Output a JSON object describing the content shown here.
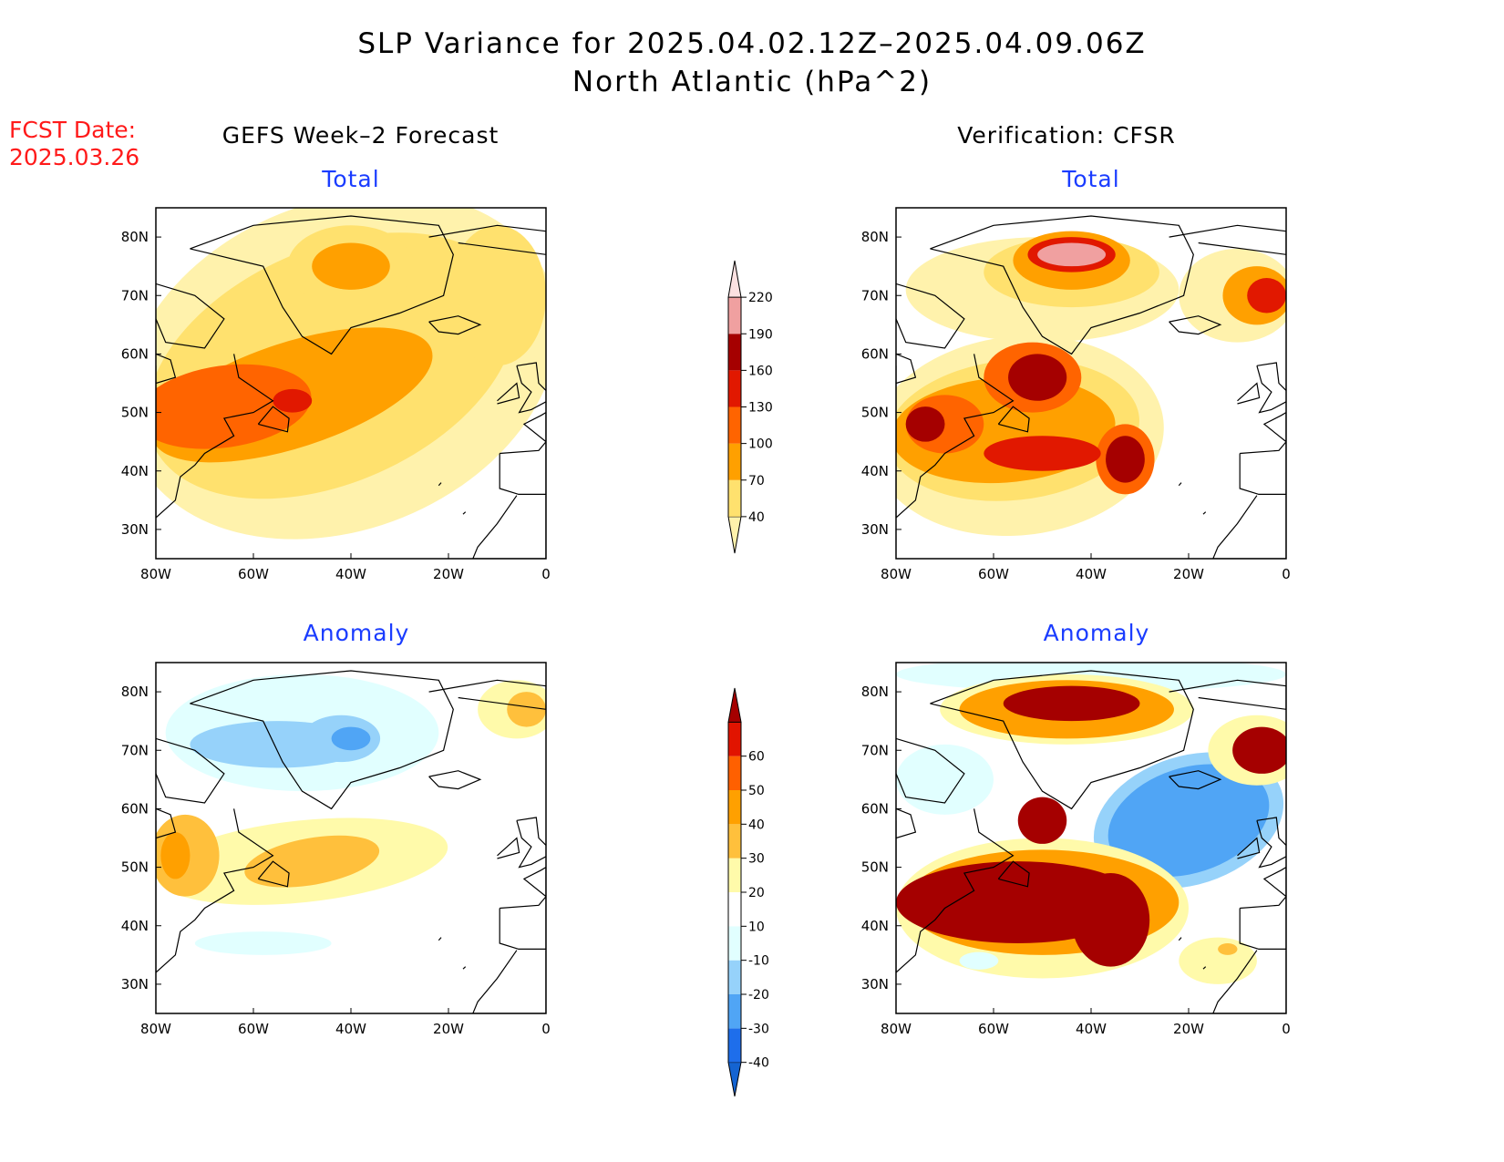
{
  "title": {
    "line1": "SLP Variance for 2025.04.02.12Z–2025.04.09.06Z",
    "line2": "North Atlantic (hPa^2)"
  },
  "fcst_label": {
    "line1": "FCST Date:",
    "line2": "2025.03.26"
  },
  "left_header": "GEFS Week–2 Forecast",
  "right_header": "Verification: CFSR",
  "chart_data": [
    {
      "type": "heatmap",
      "panel": "top-left",
      "title": "Total",
      "xticks": [
        "80W",
        "60W",
        "40W",
        "20W",
        "0"
      ],
      "yticks": [
        "30N",
        "40N",
        "50N",
        "60N",
        "70N",
        "80N"
      ],
      "xlim": [
        -80,
        0
      ],
      "ylim": [
        25,
        85
      ],
      "fields": [
        {
          "level": 40,
          "cx": -42,
          "cy": 58,
          "rx": 46,
          "ry": 28,
          "rot": 22
        },
        {
          "level": 70,
          "cx": -44,
          "cy": 58,
          "rx": 40,
          "ry": 20,
          "rot": 24
        },
        {
          "level": 100,
          "cx": -52,
          "cy": 53,
          "rx": 30,
          "ry": 9,
          "rot": 18
        },
        {
          "level": 130,
          "cx": -66,
          "cy": 51,
          "rx": 18,
          "ry": 7,
          "rot": 8
        },
        {
          "level": 160,
          "cx": -52,
          "cy": 52,
          "rx": 4,
          "ry": 2,
          "rot": 0
        },
        {
          "level": 70,
          "cx": -40,
          "cy": 75,
          "rx": 13,
          "ry": 7,
          "rot": 0
        },
        {
          "level": 100,
          "cx": -40,
          "cy": 75,
          "rx": 8,
          "ry": 4,
          "rot": 0
        },
        {
          "level": 70,
          "cx": -10,
          "cy": 70,
          "rx": 10,
          "ry": 12,
          "rot": 0
        }
      ]
    },
    {
      "type": "heatmap",
      "panel": "top-right",
      "title": "Total",
      "xticks": [
        "80W",
        "60W",
        "40W",
        "20W",
        "0"
      ],
      "yticks": [
        "30N",
        "40N",
        "50N",
        "60N",
        "70N",
        "80N"
      ],
      "xlim": [
        -80,
        0
      ],
      "ylim": [
        25,
        85
      ],
      "fields": [
        {
          "level": 40,
          "cx": -55,
          "cy": 46,
          "rx": 30,
          "ry": 17,
          "rot": 6
        },
        {
          "level": 40,
          "cx": -50,
          "cy": 71,
          "rx": 28,
          "ry": 9,
          "rot": 0
        },
        {
          "level": 40,
          "cx": -10,
          "cy": 70,
          "rx": 12,
          "ry": 8,
          "rot": 0
        },
        {
          "level": 70,
          "cx": -56,
          "cy": 47,
          "rx": 26,
          "ry": 12,
          "rot": 6
        },
        {
          "level": 70,
          "cx": -44,
          "cy": 74,
          "rx": 18,
          "ry": 6,
          "rot": 0
        },
        {
          "level": 100,
          "cx": -58,
          "cy": 47,
          "rx": 23,
          "ry": 9,
          "rot": 4
        },
        {
          "level": 100,
          "cx": -44,
          "cy": 76,
          "rx": 12,
          "ry": 5,
          "rot": 0
        },
        {
          "level": 100,
          "cx": -6,
          "cy": 70,
          "rx": 7,
          "ry": 5,
          "rot": 0
        },
        {
          "level": 130,
          "cx": -52,
          "cy": 56,
          "rx": 10,
          "ry": 6,
          "rot": 0
        },
        {
          "level": 130,
          "cx": -70,
          "cy": 48,
          "rx": 8,
          "ry": 5,
          "rot": 0
        },
        {
          "level": 130,
          "cx": -33,
          "cy": 42,
          "rx": 6,
          "ry": 6,
          "rot": 0
        },
        {
          "level": 160,
          "cx": -50,
          "cy": 43,
          "rx": 12,
          "ry": 3,
          "rot": 0
        },
        {
          "level": 160,
          "cx": -44,
          "cy": 77,
          "rx": 9,
          "ry": 3,
          "rot": 0
        },
        {
          "level": 160,
          "cx": -4,
          "cy": 70,
          "rx": 4,
          "ry": 3,
          "rot": 0
        },
        {
          "level": 190,
          "cx": -51,
          "cy": 56,
          "rx": 6,
          "ry": 4,
          "rot": 0
        },
        {
          "level": 190,
          "cx": -74,
          "cy": 48,
          "rx": 4,
          "ry": 3,
          "rot": 0
        },
        {
          "level": 190,
          "cx": -33,
          "cy": 42,
          "rx": 4,
          "ry": 4,
          "rot": 0
        },
        {
          "level": 220,
          "cx": -44,
          "cy": 77,
          "rx": 7,
          "ry": 2,
          "rot": 0
        }
      ]
    },
    {
      "type": "heatmap",
      "panel": "bottom-left",
      "title": "Anomaly",
      "xticks": [
        "80W",
        "60W",
        "40W",
        "20W",
        "0"
      ],
      "yticks": [
        "30N",
        "40N",
        "50N",
        "60N",
        "70N",
        "80N"
      ],
      "xlim": [
        -80,
        0
      ],
      "ylim": [
        25,
        85
      ],
      "fields": [
        {
          "level": -10,
          "cx": -50,
          "cy": 73,
          "rx": 28,
          "ry": 10,
          "rot": 0
        },
        {
          "level": -20,
          "cx": -55,
          "cy": 71,
          "rx": 18,
          "ry": 4,
          "rot": 0
        },
        {
          "level": -20,
          "cx": -42,
          "cy": 72,
          "rx": 8,
          "ry": 4,
          "rot": 0
        },
        {
          "level": -30,
          "cx": -40,
          "cy": 72,
          "rx": 4,
          "ry": 2,
          "rot": 0
        },
        {
          "level": 10,
          "cx": -50,
          "cy": 51,
          "rx": 30,
          "ry": 7,
          "rot": 6
        },
        {
          "level": 20,
          "cx": -48,
          "cy": 51,
          "rx": 14,
          "ry": 4,
          "rot": 10
        },
        {
          "level": 20,
          "cx": -74,
          "cy": 52,
          "rx": 7,
          "ry": 7,
          "rot": 0
        },
        {
          "level": 30,
          "cx": -76,
          "cy": 52,
          "rx": 3,
          "ry": 4,
          "rot": 0
        },
        {
          "level": 10,
          "cx": -6,
          "cy": 77,
          "rx": 8,
          "ry": 5,
          "rot": 0
        },
        {
          "level": 20,
          "cx": -4,
          "cy": 77,
          "rx": 4,
          "ry": 3,
          "rot": 0
        },
        {
          "level": -10,
          "cx": -58,
          "cy": 37,
          "rx": 14,
          "ry": 2,
          "rot": 0
        }
      ]
    },
    {
      "type": "heatmap",
      "panel": "bottom-right",
      "title": "Anomaly",
      "xticks": [
        "80W",
        "60W",
        "40W",
        "20W",
        "0"
      ],
      "yticks": [
        "30N",
        "40N",
        "50N",
        "60N",
        "70N",
        "80N"
      ],
      "xlim": [
        -80,
        0
      ],
      "ylim": [
        25,
        85
      ],
      "fields": [
        {
          "level": -10,
          "cx": -40,
          "cy": 83,
          "rx": 40,
          "ry": 3,
          "rot": 0
        },
        {
          "level": -10,
          "cx": -70,
          "cy": 65,
          "rx": 10,
          "ry": 6,
          "rot": 0
        },
        {
          "level": -20,
          "cx": -20,
          "cy": 58,
          "rx": 20,
          "ry": 11,
          "rot": 18
        },
        {
          "level": -30,
          "cx": -20,
          "cy": 58,
          "rx": 17,
          "ry": 9,
          "rot": 18
        },
        {
          "level": -30,
          "cx": -45,
          "cy": 50,
          "rx": 2,
          "ry": 2,
          "rot": 0
        },
        {
          "level": 10,
          "cx": -50,
          "cy": 43,
          "rx": 30,
          "ry": 12,
          "rot": 0
        },
        {
          "level": 10,
          "cx": -45,
          "cy": 77,
          "rx": 26,
          "ry": 6,
          "rot": 0
        },
        {
          "level": 10,
          "cx": -14,
          "cy": 34,
          "rx": 8,
          "ry": 4,
          "rot": 0
        },
        {
          "level": 10,
          "cx": -6,
          "cy": 70,
          "rx": 10,
          "ry": 6,
          "rot": 0
        },
        {
          "level": 30,
          "cx": -50,
          "cy": 44,
          "rx": 28,
          "ry": 9,
          "rot": 0
        },
        {
          "level": 30,
          "cx": -45,
          "cy": 77,
          "rx": 22,
          "ry": 5,
          "rot": 0
        },
        {
          "level": 60,
          "cx": -55,
          "cy": 44,
          "rx": 25,
          "ry": 7,
          "rot": 0
        },
        {
          "level": 60,
          "cx": -36,
          "cy": 41,
          "rx": 8,
          "ry": 8,
          "rot": 0
        },
        {
          "level": 60,
          "cx": -50,
          "cy": 58,
          "rx": 5,
          "ry": 4,
          "rot": 0
        },
        {
          "level": 60,
          "cx": -44,
          "cy": 78,
          "rx": 14,
          "ry": 3,
          "rot": 0
        },
        {
          "level": 60,
          "cx": -5,
          "cy": 70,
          "rx": 6,
          "ry": 4,
          "rot": 0
        },
        {
          "level": 20,
          "cx": -12,
          "cy": 36,
          "rx": 2,
          "ry": 1,
          "rot": 0
        },
        {
          "level": -10,
          "cx": -63,
          "cy": 34,
          "rx": 4,
          "ry": 1.5,
          "rot": 0
        }
      ]
    }
  ],
  "colorbar_total": {
    "labels": [
      "40",
      "70",
      "100",
      "130",
      "160",
      "190",
      "220"
    ],
    "colors": [
      "#fff2ac",
      "#ffe16e",
      "#ffa000",
      "#ff6400",
      "#e11800",
      "#a50000",
      "#f0a0a0",
      "#fbe1e1"
    ]
  },
  "colorbar_anomaly": {
    "labels": [
      "-40",
      "-30",
      "-20",
      "-10",
      "10",
      "20",
      "30",
      "40",
      "50",
      "60"
    ],
    "colors": [
      "#1464d2",
      "#1e6eeb",
      "#50a5f5",
      "#96d2fa",
      "#e1ffff",
      "#ffffff",
      "#fffaaa",
      "#ffc03c",
      "#ffa000",
      "#ff6000",
      "#e11400",
      "#a50000"
    ]
  }
}
